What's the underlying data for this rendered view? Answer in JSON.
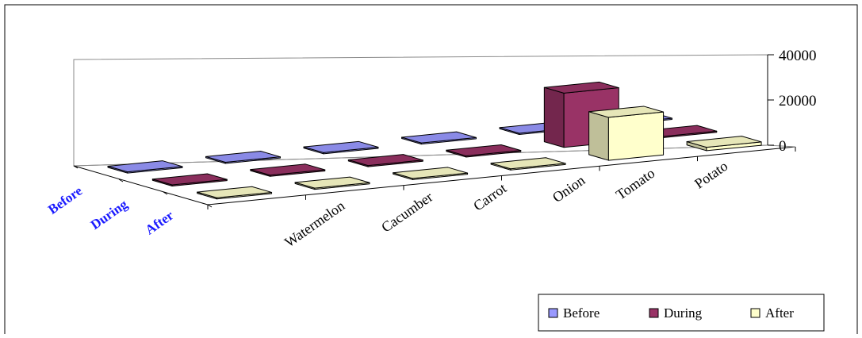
{
  "chart_data": {
    "type": "bar",
    "subtype": "3d-column",
    "categories": [
      "Watermelon",
      "Cacumber",
      "Carrot",
      "Onion",
      "Tomato",
      "Potato"
    ],
    "series": [
      {
        "name": "Before",
        "values": [
          0,
          0,
          0,
          0,
          0,
          0
        ]
      },
      {
        "name": "During",
        "values": [
          0,
          0,
          0,
          0,
          24000,
          0
        ]
      },
      {
        "name": "After",
        "values": [
          0,
          0,
          0,
          0,
          19000,
          1500
        ]
      }
    ],
    "y_ticks": [
      "0",
      "20000",
      "40000"
    ],
    "ylim": [
      0,
      40000
    ],
    "series_axis_labels": [
      "Before",
      "During",
      "After"
    ],
    "grid": false,
    "legend_position": "bottom-right",
    "colors": {
      "Before": "#9999ff",
      "During": "#993366",
      "After": "#ffffcc"
    }
  }
}
